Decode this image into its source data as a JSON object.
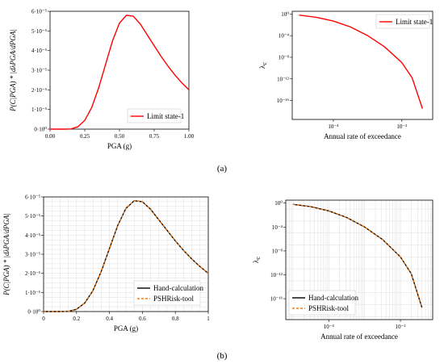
{
  "panel_labels": {
    "top": "(a)",
    "bottom": "(b)"
  },
  "chart_data": [
    {
      "id": "a-left",
      "type": "line",
      "xlabel": "PGA (g)",
      "ylabel": "P(C|PGA) * |dλPGA/dPGA|",
      "xlim": [
        0,
        1
      ],
      "ylim": [
        0,
        6e-05
      ],
      "xticks": [
        0,
        0.25,
        0.5,
        0.75,
        1.0
      ],
      "xtick_labels": [
        "0.00",
        "0.25",
        "0.50",
        "0.75",
        "1.00"
      ],
      "yticks": [
        0,
        1e-05,
        2e-05,
        3e-05,
        4e-05,
        5e-05,
        6e-05
      ],
      "ytick_labels": [
        "0·10⁰",
        "1·10⁻⁵",
        "2·10⁻⁵",
        "3·10⁻⁵",
        "4·10⁻⁵",
        "5·10⁻⁵",
        "6·10⁻⁵"
      ],
      "grid": false,
      "legend": "lower-right",
      "series": [
        {
          "name": "Limit state-1",
          "color": "#ff0000",
          "style": "solid",
          "x": [
            0,
            0.1,
            0.15,
            0.2,
            0.25,
            0.3,
            0.35,
            0.4,
            0.45,
            0.5,
            0.55,
            0.6,
            0.65,
            0.7,
            0.75,
            0.8,
            0.85,
            0.9,
            0.95,
            1.0
          ],
          "y": [
            0,
            0,
            1e-07,
            1.2e-06,
            4.5e-06,
            1.1e-05,
            2.1e-05,
            3.3e-05,
            4.5e-05,
            5.4e-05,
            5.8e-05,
            5.75e-05,
            5.35e-05,
            4.8e-05,
            4.25e-05,
            3.7e-05,
            3.2e-05,
            2.75e-05,
            2.35e-05,
            2e-05
          ]
        }
      ]
    },
    {
      "id": "a-right",
      "type": "line",
      "xlabel": "Annual rate of exceedance",
      "ylabel": "λc",
      "xlog": true,
      "ylog": true,
      "xlim": [
        -5.2,
        -1.1
      ],
      "ylim": [
        -19.5,
        0.5
      ],
      "xticks": [
        -4,
        -2
      ],
      "xtick_labels": [
        "10⁻⁴",
        "10⁻²"
      ],
      "yticks": [
        0,
        -4,
        -8,
        -12,
        -16
      ],
      "ytick_labels": [
        "10⁰",
        "10⁻⁴",
        "10⁻⁸",
        "10⁻¹²",
        "10⁻¹⁶"
      ],
      "grid": false,
      "legend": "top-right",
      "series": [
        {
          "name": "Limit state-1",
          "color": "#ff0000",
          "style": "solid",
          "x": [
            -5.0,
            -4.5,
            -4.0,
            -3.5,
            -3.0,
            -2.5,
            -2.0,
            -1.7,
            -1.4
          ],
          "y": [
            -0.2,
            -0.6,
            -1.3,
            -2.4,
            -4.0,
            -6.1,
            -9.0,
            -11.8,
            -17.5
          ]
        }
      ]
    },
    {
      "id": "b-left",
      "type": "line",
      "xlabel": "PGA (g)",
      "ylabel": "P(C|PGA) * |dλPGA/dPGA|",
      "xlim": [
        0,
        1
      ],
      "ylim": [
        0,
        6e-05
      ],
      "xticks": [
        0,
        0.2,
        0.4,
        0.6,
        0.8,
        1.0
      ],
      "xtick_labels": [
        "0",
        "0.2",
        "0.4",
        "0.6",
        "0.8",
        "1"
      ],
      "yticks": [
        0,
        1e-05,
        2e-05,
        3e-05,
        4e-05,
        5e-05,
        6e-05
      ],
      "ytick_labels": [
        "0·10⁰",
        "1·10⁻⁵",
        "2·10⁻⁵",
        "3·10⁻⁵",
        "4·10⁻⁵",
        "5·10⁻⁵",
        "6·10⁻⁵"
      ],
      "grid": true,
      "legend": "lower-right",
      "series": [
        {
          "name": "Hand-calculation",
          "color": "#000000",
          "style": "solid",
          "x": [
            0,
            0.1,
            0.15,
            0.2,
            0.25,
            0.3,
            0.35,
            0.4,
            0.45,
            0.5,
            0.55,
            0.6,
            0.65,
            0.7,
            0.75,
            0.8,
            0.85,
            0.9,
            0.95,
            1.0
          ],
          "y": [
            0,
            0,
            1e-07,
            1.2e-06,
            4.5e-06,
            1.1e-05,
            2.1e-05,
            3.3e-05,
            4.5e-05,
            5.4e-05,
            5.8e-05,
            5.75e-05,
            5.35e-05,
            4.8e-05,
            4.25e-05,
            3.7e-05,
            3.2e-05,
            2.75e-05,
            2.35e-05,
            2e-05
          ]
        },
        {
          "name": "PSHRisk-tool",
          "color": "#ff7f0e",
          "style": "dashed",
          "x": [
            0,
            0.1,
            0.15,
            0.2,
            0.25,
            0.3,
            0.35,
            0.4,
            0.45,
            0.5,
            0.55,
            0.6,
            0.65,
            0.7,
            0.75,
            0.8,
            0.85,
            0.9,
            0.95,
            1.0
          ],
          "y": [
            0,
            0,
            1e-07,
            1.2e-06,
            4.5e-06,
            1.1e-05,
            2.1e-05,
            3.3e-05,
            4.5e-05,
            5.4e-05,
            5.8e-05,
            5.75e-05,
            5.35e-05,
            4.8e-05,
            4.25e-05,
            3.7e-05,
            3.2e-05,
            2.75e-05,
            2.35e-05,
            2e-05
          ]
        }
      ]
    },
    {
      "id": "b-right",
      "type": "line",
      "xlabel": "Annual rate of exceedance",
      "ylabel": "λc",
      "xlog": true,
      "ylog": true,
      "xlim": [
        -5.2,
        -1.1
      ],
      "ylim": [
        -19.5,
        0.5
      ],
      "xticks": [
        -4,
        -2
      ],
      "xtick_labels": [
        "10⁻⁴",
        "10⁻²"
      ],
      "yticks": [
        0,
        -4,
        -8,
        -12,
        -16
      ],
      "ytick_labels": [
        "10⁰",
        "10⁻⁴",
        "10⁻⁸",
        "10⁻¹²",
        "10⁻¹⁶"
      ],
      "grid": true,
      "legend": "lower-left",
      "series": [
        {
          "name": "Hand-calculation",
          "color": "#000000",
          "style": "solid",
          "x": [
            -5.0,
            -4.5,
            -4.0,
            -3.5,
            -3.0,
            -2.5,
            -2.0,
            -1.7,
            -1.4
          ],
          "y": [
            -0.2,
            -0.6,
            -1.3,
            -2.4,
            -4.0,
            -6.1,
            -9.0,
            -11.8,
            -17.5
          ]
        },
        {
          "name": "PSHRisk-tool",
          "color": "#ff7f0e",
          "style": "dashed",
          "x": [
            -5.0,
            -4.5,
            -4.0,
            -3.5,
            -3.0,
            -2.5,
            -2.0,
            -1.7,
            -1.4
          ],
          "y": [
            -0.2,
            -0.6,
            -1.3,
            -2.4,
            -4.0,
            -6.1,
            -9.0,
            -11.8,
            -17.5
          ]
        }
      ]
    }
  ]
}
